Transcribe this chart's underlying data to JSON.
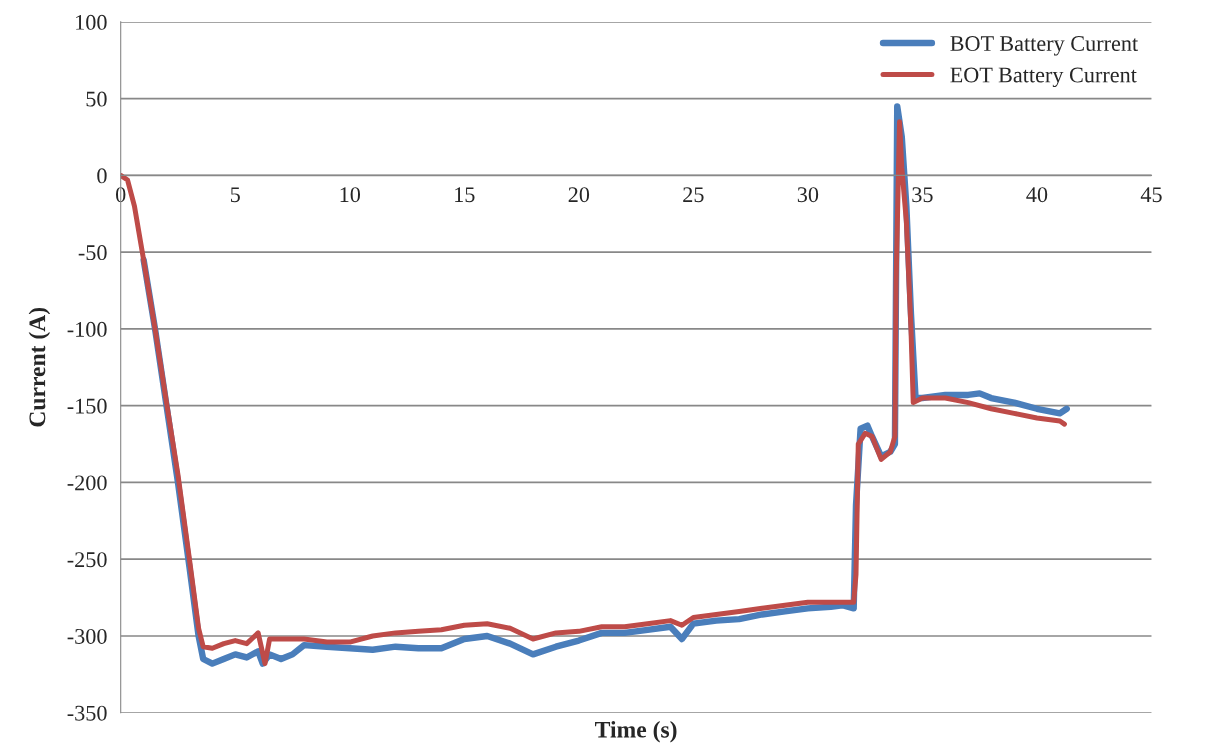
{
  "chart_data": {
    "type": "line",
    "xlabel": "Time (s)",
    "ylabel": "Current (A)",
    "xlim": [
      0,
      45
    ],
    "xticks": [
      0,
      5,
      10,
      15,
      20,
      25,
      30,
      35,
      40,
      45
    ],
    "ylim": [
      -350,
      100
    ],
    "yticks": [
      -350,
      -300,
      -250,
      -200,
      -150,
      -100,
      -50,
      0,
      50,
      100
    ],
    "grid": "y",
    "legend": "top right",
    "marker": "none",
    "line_style": "solid",
    "series": [
      {
        "name": "BOT Battery Current",
        "color": "#4a7ebb",
        "x": [
          1.0,
          1.5,
          2.0,
          2.5,
          3.0,
          3.4,
          3.6,
          4.0,
          4.5,
          5,
          5.5,
          6,
          6.2,
          6.5,
          7,
          7.5,
          8,
          9,
          10,
          11,
          12,
          13,
          14,
          15,
          16,
          17,
          18,
          19,
          20,
          21,
          22,
          23,
          24,
          24.5,
          25,
          26,
          27,
          28,
          29,
          30,
          31,
          31.5,
          32.0,
          32.1,
          32.3,
          32.6,
          32.8,
          33.2,
          33.6,
          33.8,
          33.9,
          34.1,
          34.3,
          34.5,
          34.7,
          35,
          36,
          37,
          37.5,
          38,
          39,
          40,
          41,
          41.3
        ],
        "values": [
          -55,
          -100,
          -150,
          -200,
          -255,
          -300,
          -315,
          -318,
          -315,
          -312,
          -314,
          -310,
          -318,
          -312,
          -315,
          -312,
          -306,
          -307,
          -308,
          -309,
          -307,
          -308,
          -308,
          -302,
          -300,
          -305,
          -312,
          -307,
          -303,
          -298,
          -298,
          -296,
          -294,
          -302,
          -292,
          -290,
          -289,
          -286,
          -284,
          -282,
          -281,
          -280,
          -282,
          -215,
          -165,
          -163,
          -170,
          -183,
          -180,
          -175,
          45,
          25,
          -20,
          -90,
          -145,
          -145,
          -143,
          -143,
          -142,
          -145,
          -148,
          -152,
          -155,
          -152
        ]
      },
      {
        "name": "EOT Battery Current",
        "color": "#be4b48",
        "x": [
          0,
          0.3,
          0.6,
          1,
          1.5,
          2,
          2.5,
          3,
          3.4,
          3.6,
          4,
          4.5,
          5,
          5.5,
          6,
          6.3,
          6.5,
          7,
          8,
          9,
          10,
          11,
          12,
          13,
          14,
          15,
          16,
          17,
          18,
          19,
          20,
          21,
          22,
          23,
          24,
          24.5,
          25,
          26,
          27,
          28,
          29,
          30,
          31,
          32,
          32.1,
          32.2,
          32.5,
          32.8,
          33.2,
          33.6,
          33.8,
          33.85,
          34.0,
          34.1,
          34.3,
          34.5,
          34.6,
          35,
          36,
          37,
          38,
          39,
          40,
          41,
          41.2
        ],
        "values": [
          0,
          -3,
          -20,
          -55,
          -100,
          -148,
          -195,
          -250,
          -295,
          -307,
          -308,
          -305,
          -303,
          -305,
          -298,
          -318,
          -302,
          -302,
          -302,
          -304,
          -304,
          -300,
          -298,
          -297,
          -296,
          -293,
          -292,
          -295,
          -302,
          -298,
          -297,
          -294,
          -294,
          -292,
          -290,
          -293,
          -288,
          -286,
          -284,
          -282,
          -280,
          -278,
          -278,
          -278,
          -260,
          -175,
          -168,
          -170,
          -185,
          -180,
          -170,
          -70,
          35,
          5,
          -30,
          -100,
          -148,
          -145,
          -145,
          -148,
          -152,
          -155,
          -158,
          -160,
          -162
        ]
      }
    ]
  }
}
